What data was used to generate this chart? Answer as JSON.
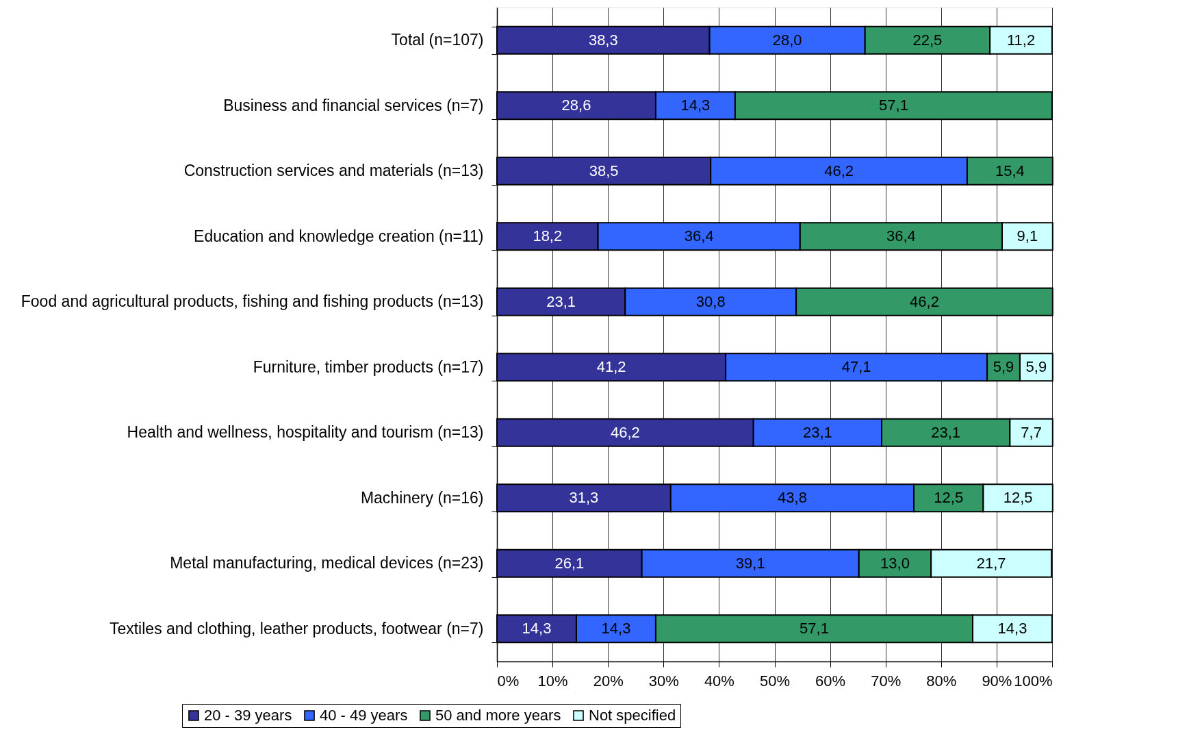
{
  "chart_data": {
    "type": "bar",
    "orientation": "horizontal",
    "stacked": true,
    "categories": [
      "Total (n=107)",
      "Business and financial services (n=7)",
      "Construction services and materials (n=13)",
      "Education and knowledge creation (n=11)",
      "Food and agricultural products, fishing and fishing products (n=13)",
      "Furniture, timber products (n=17)",
      "Health and wellness, hospitality and tourism (n=13)",
      "Machinery (n=16)",
      "Metal manufacturing, medical devices (n=23)",
      "Textiles and clothing, leather products, footwear (n=7)"
    ],
    "series": [
      {
        "name": "20 - 39 years",
        "color": "#333399",
        "values": [
          38.3,
          28.6,
          38.5,
          18.2,
          23.1,
          41.2,
          46.2,
          31.3,
          26.1,
          14.3
        ],
        "value_labels": [
          "38,3",
          "28,6",
          "38,5",
          "18,2",
          "23,1",
          "41,2",
          "46,2",
          "31,3",
          "26,1",
          "14,3"
        ]
      },
      {
        "name": "40 - 49 years",
        "color": "#3366ff",
        "values": [
          28.0,
          14.3,
          46.2,
          36.4,
          30.8,
          47.1,
          23.1,
          43.8,
          39.1,
          14.3
        ],
        "value_labels": [
          "28,0",
          "14,3",
          "46,2",
          "36,4",
          "30,8",
          "47,1",
          "23,1",
          "43,8",
          "39,1",
          "14,3"
        ]
      },
      {
        "name": "50 and more years",
        "color": "#339966",
        "values": [
          22.5,
          57.1,
          15.4,
          36.4,
          46.2,
          5.9,
          23.1,
          12.5,
          13.0,
          57.1
        ],
        "value_labels": [
          "22,5",
          "57,1",
          "15,4",
          "36,4",
          "46,2",
          "5,9",
          "23,1",
          "12,5",
          "13,0",
          "57,1"
        ]
      },
      {
        "name": "Not specified",
        "color": "#ccffff",
        "values": [
          11.2,
          null,
          null,
          9.1,
          null,
          5.9,
          7.7,
          12.5,
          21.7,
          14.3
        ],
        "value_labels": [
          "11,2",
          null,
          null,
          "9,1",
          null,
          "5,9",
          "7,7",
          "12,5",
          "21,7",
          "14,3"
        ]
      }
    ],
    "xlim": [
      0,
      100
    ],
    "xticks": [
      {
        "value": 0,
        "label": "0%"
      },
      {
        "value": 10,
        "label": "10%"
      },
      {
        "value": 20,
        "label": "20%"
      },
      {
        "value": 30,
        "label": "30%"
      },
      {
        "value": 40,
        "label": "40%"
      },
      {
        "value": 50,
        "label": "50%"
      },
      {
        "value": 60,
        "label": "60%"
      },
      {
        "value": 70,
        "label": "70%"
      },
      {
        "value": 80,
        "label": "80%"
      },
      {
        "value": 90,
        "label": "90%"
      },
      {
        "value": 100,
        "label": "100%"
      }
    ],
    "grid": "x",
    "legend": "bottom"
  }
}
